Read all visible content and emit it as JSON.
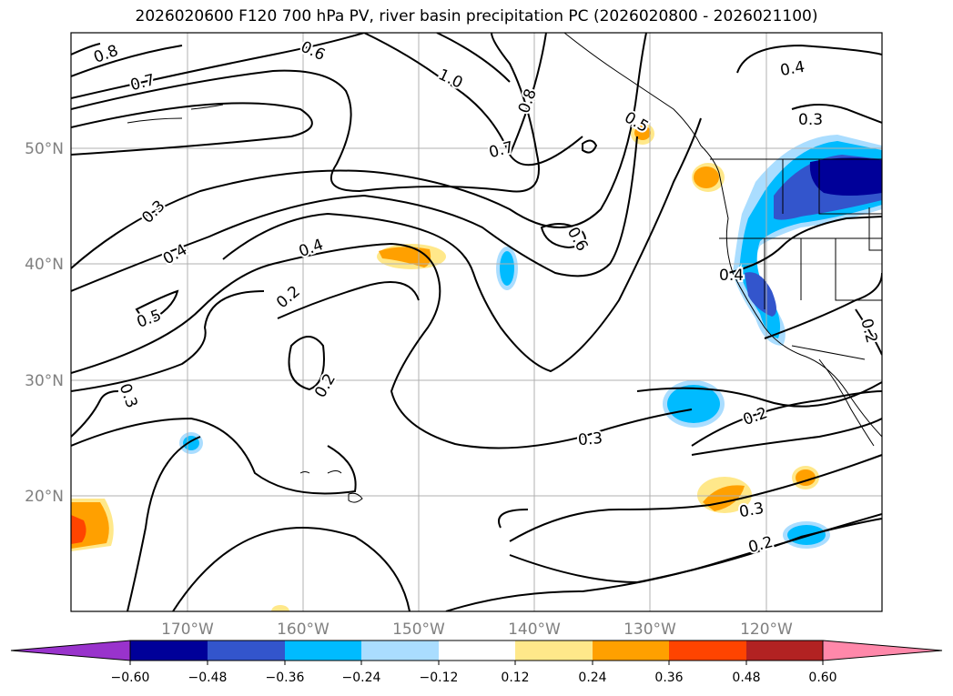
{
  "title": "2026020600 F120 700 hPa PV, river basin precipitation PC (2026020800 - 2026021100)",
  "map": {
    "projection": "lat-lon",
    "lon_ticks": [
      "170°W",
      "160°W",
      "150°W",
      "140°W",
      "130°W",
      "120°W"
    ],
    "lat_ticks": [
      "50°N",
      "40°N",
      "30°N",
      "20°N"
    ],
    "grid": true
  },
  "contour_labels": [
    "0.8",
    "0.6",
    "1.0",
    "0.8",
    "0.7",
    "0.7",
    "0.5",
    "0.4",
    "0.3",
    "0.3",
    "0.4",
    "0.4",
    "0.6",
    "0.2",
    "0.5",
    "0.2",
    "0.4",
    "0.3",
    "0.2",
    "0.3",
    "0.2",
    "0.3",
    "0.2"
  ],
  "colorbar": {
    "ticks": [
      "−0.60",
      "−0.48",
      "−0.36",
      "−0.24",
      "−0.12",
      "0.12",
      "0.24",
      "0.36",
      "0.48",
      "0.60"
    ],
    "colors": [
      "#9933cc",
      "#000099",
      "#3355cc",
      "#00bbff",
      "#aaddff",
      "#ffffff",
      "#ffe88a",
      "#ffa000",
      "#ff4400",
      "#b22222",
      "#ff88aa"
    ]
  }
}
